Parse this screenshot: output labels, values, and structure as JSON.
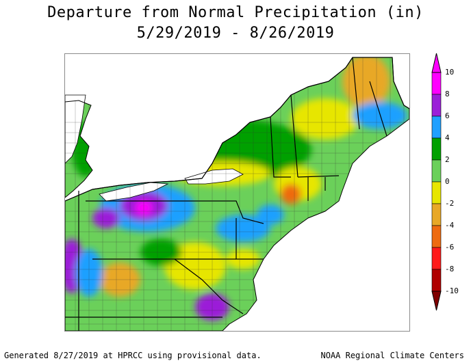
{
  "title_line1": "Departure from Normal Precipitation (in)",
  "title_line2": "5/29/2019 - 8/26/2019",
  "footer_left": "Generated 8/27/2019 at HPRCC using provisional data.",
  "footer_right": "NOAA Regional Climate Centers",
  "legend": {
    "labels": [
      "10",
      "8",
      "6",
      "4",
      "2",
      "0",
      "-2",
      "-4",
      "-6",
      "-8",
      "-10"
    ],
    "bins": [
      {
        "range": "8 to 10",
        "color": "#ff00ff"
      },
      {
        "range": "6 to 8",
        "color": "#9b1fd8"
      },
      {
        "range": "4 to 6",
        "color": "#1fa0ff"
      },
      {
        "range": "2 to 4",
        "color": "#00a000"
      },
      {
        "range": "0 to 2",
        "color": "#6bd05a"
      },
      {
        "range": "-2 to 0",
        "color": "#e7e600"
      },
      {
        "range": "-4 to -2",
        "color": "#e8a826"
      },
      {
        "range": "-6 to -4",
        "color": "#ee6b10"
      },
      {
        "range": "-8 to -6",
        "color": "#ff1a1a"
      },
      {
        "range": "-10 to -8",
        "color": "#b00000"
      }
    ],
    "top_arrow_color": "#ff00ff",
    "bottom_arrow_color": "#800000"
  },
  "map": {
    "water_color": "#ffffff",
    "border_color": "#000000"
  }
}
